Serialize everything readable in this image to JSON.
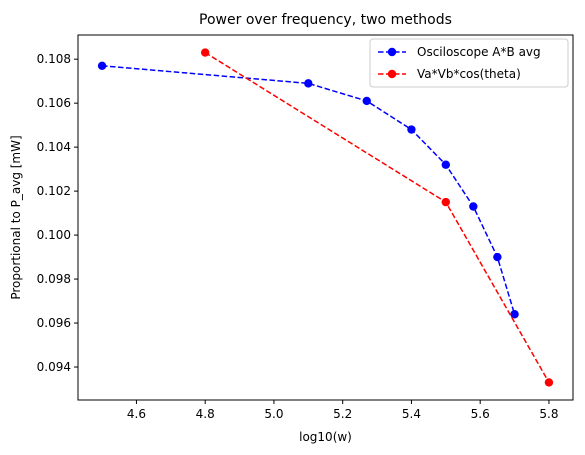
{
  "chart_data": {
    "type": "line",
    "title": "Power over frequency, two methods",
    "xlabel": "log10(w)",
    "ylabel": "Proportional to P_avg [mW]",
    "xlim": [
      4.43,
      5.87
    ],
    "ylim": [
      0.0925,
      0.1091
    ],
    "xticks": [
      4.6,
      4.8,
      5.0,
      5.2,
      5.4,
      5.6,
      5.8
    ],
    "xtick_labels": [
      "4.6",
      "4.8",
      "5.0",
      "5.2",
      "5.4",
      "5.6",
      "5.8"
    ],
    "yticks": [
      0.094,
      0.096,
      0.098,
      0.1,
      0.102,
      0.104,
      0.106,
      0.108
    ],
    "ytick_labels": [
      "0.094",
      "0.096",
      "0.098",
      "0.100",
      "0.102",
      "0.104",
      "0.106",
      "0.108"
    ],
    "grid": false,
    "legend_position": "top-right",
    "series": [
      {
        "name": "Osciloscope A*B avg",
        "color": "#0000ff",
        "linestyle": "dashed",
        "marker": "circle",
        "x": [
          4.5,
          5.1,
          5.27,
          5.4,
          5.5,
          5.58,
          5.65,
          5.7
        ],
        "y": [
          0.1077,
          0.1069,
          0.1061,
          0.1048,
          0.1032,
          0.1013,
          0.099,
          0.0964
        ]
      },
      {
        "name": "Va*Vb*cos(theta)",
        "color": "#ff0000",
        "linestyle": "dashed",
        "marker": "circle",
        "x": [
          4.8,
          5.5,
          5.8
        ],
        "y": [
          0.1083,
          0.1015,
          0.0933
        ]
      }
    ]
  }
}
